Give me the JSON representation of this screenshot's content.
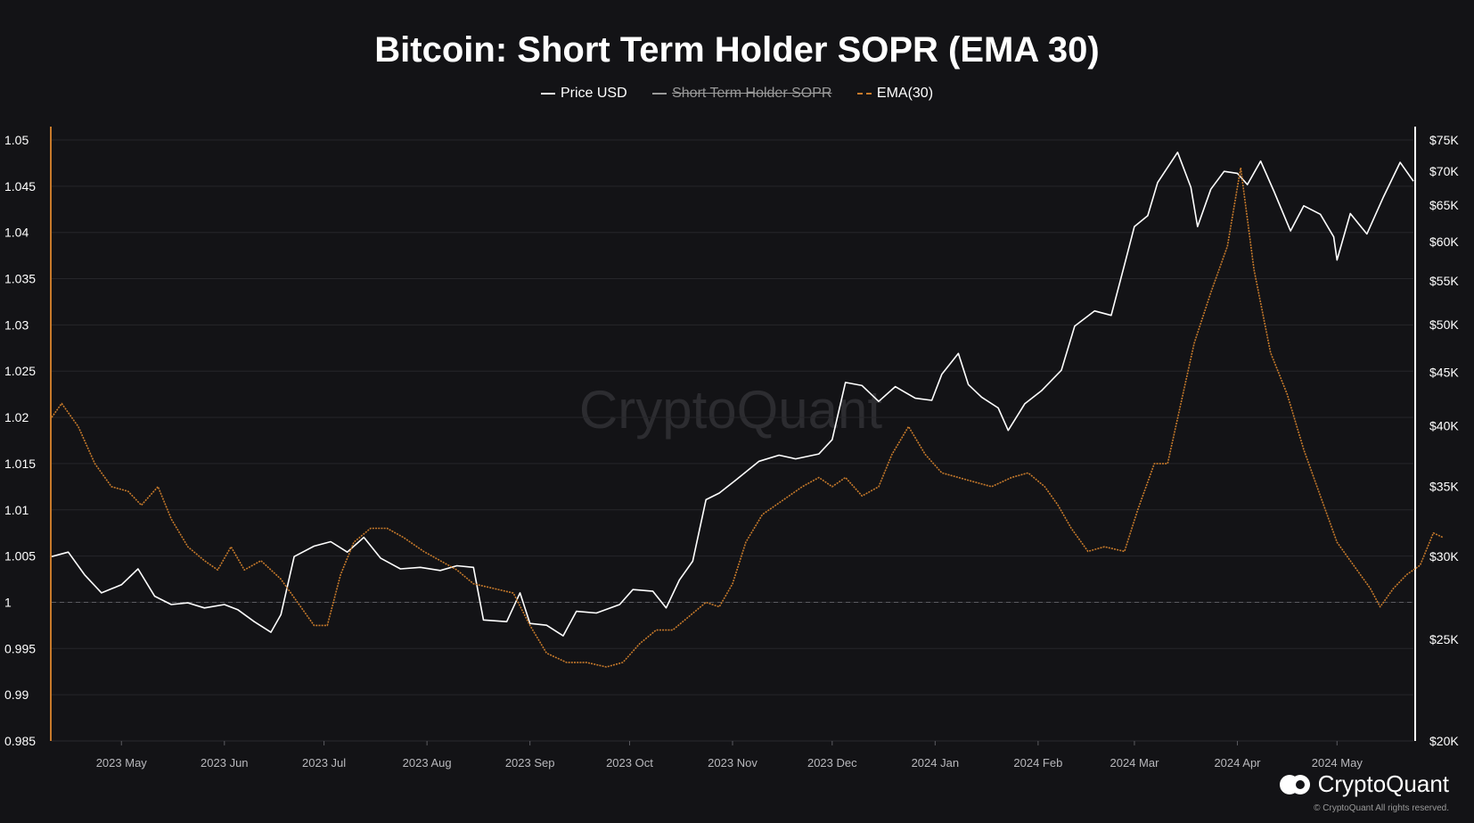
{
  "chart_data": {
    "type": "line",
    "title": "Bitcoin: Short Term Holder SOPR (EMA 30)",
    "legend": [
      {
        "label": "Price USD",
        "color": "#ffffff",
        "hidden": false
      },
      {
        "label": "Short Term Holder SOPR",
        "color": "#9a9a9a",
        "hidden": true
      },
      {
        "label": "EMA(30)",
        "color": "#c77a2b",
        "hidden": false
      }
    ],
    "x_axis": {
      "ticks": [
        "2023 May",
        "2023 Jun",
        "2023 Jul",
        "2023 Aug",
        "2023 Sep",
        "2023 Oct",
        "2023 Nov",
        "2023 Dec",
        "2024 Jan",
        "2024 Feb",
        "2024 Mar",
        "2024 Apr",
        "2024 May"
      ],
      "range": [
        "2023-04-10",
        "2024-05-24"
      ]
    },
    "y_left": {
      "ticks": [
        "1.05",
        "1.045",
        "1.04",
        "1.035",
        "1.03",
        "1.025",
        "1.02",
        "1.015",
        "1.01",
        "1.005",
        "1",
        "0.995",
        "0.99",
        "0.985"
      ],
      "range": [
        0.985,
        1.05
      ],
      "reference_line": 1.0,
      "axis_color": "#c77a2b"
    },
    "y_right": {
      "ticks": [
        "$75K",
        "$70K",
        "$65K",
        "$60K",
        "$55K",
        "$50K",
        "$45K",
        "$40K",
        "$35K",
        "$30K",
        "$25K",
        "$20K"
      ],
      "range": [
        20000,
        75000
      ],
      "scale": "log",
      "axis_color": "#ffffff"
    },
    "series": [
      {
        "name": "Price USD",
        "axis": "right",
        "color": "#ffffff",
        "points": [
          [
            "2023-04-10",
            30000
          ],
          [
            "2023-04-15",
            30300
          ],
          [
            "2023-04-20",
            28800
          ],
          [
            "2023-04-25",
            27700
          ],
          [
            "2023-05-01",
            28200
          ],
          [
            "2023-05-06",
            29200
          ],
          [
            "2023-05-11",
            27500
          ],
          [
            "2023-05-16",
            27000
          ],
          [
            "2023-05-21",
            27100
          ],
          [
            "2023-05-26",
            26800
          ],
          [
            "2023-06-01",
            27000
          ],
          [
            "2023-06-05",
            26700
          ],
          [
            "2023-06-10",
            26000
          ],
          [
            "2023-06-15",
            25400
          ],
          [
            "2023-06-18",
            26400
          ],
          [
            "2023-06-22",
            30000
          ],
          [
            "2023-06-28",
            30700
          ],
          [
            "2023-07-03",
            31000
          ],
          [
            "2023-07-08",
            30300
          ],
          [
            "2023-07-13",
            31300
          ],
          [
            "2023-07-18",
            29900
          ],
          [
            "2023-07-24",
            29200
          ],
          [
            "2023-07-30",
            29300
          ],
          [
            "2023-08-05",
            29100
          ],
          [
            "2023-08-10",
            29400
          ],
          [
            "2023-08-15",
            29300
          ],
          [
            "2023-08-18",
            26100
          ],
          [
            "2023-08-25",
            26000
          ],
          [
            "2023-08-29",
            27700
          ],
          [
            "2023-09-01",
            25900
          ],
          [
            "2023-09-06",
            25800
          ],
          [
            "2023-09-11",
            25200
          ],
          [
            "2023-09-15",
            26600
          ],
          [
            "2023-09-21",
            26500
          ],
          [
            "2023-09-28",
            27000
          ],
          [
            "2023-10-02",
            27900
          ],
          [
            "2023-10-08",
            27800
          ],
          [
            "2023-10-12",
            26800
          ],
          [
            "2023-10-16",
            28500
          ],
          [
            "2023-10-20",
            29700
          ],
          [
            "2023-10-24",
            34000
          ],
          [
            "2023-10-28",
            34500
          ],
          [
            "2023-11-02",
            35500
          ],
          [
            "2023-11-09",
            37000
          ],
          [
            "2023-11-15",
            37500
          ],
          [
            "2023-11-20",
            37200
          ],
          [
            "2023-11-27",
            37600
          ],
          [
            "2023-12-01",
            38800
          ],
          [
            "2023-12-05",
            44000
          ],
          [
            "2023-12-10",
            43700
          ],
          [
            "2023-12-15",
            42200
          ],
          [
            "2023-12-20",
            43600
          ],
          [
            "2023-12-26",
            42500
          ],
          [
            "2023-12-31",
            42300
          ],
          [
            "2024-01-03",
            44800
          ],
          [
            "2024-01-08",
            46900
          ],
          [
            "2024-01-11",
            43800
          ],
          [
            "2024-01-15",
            42600
          ],
          [
            "2024-01-20",
            41600
          ],
          [
            "2024-01-23",
            39600
          ],
          [
            "2024-01-28",
            42000
          ],
          [
            "2024-02-02",
            43200
          ],
          [
            "2024-02-08",
            45200
          ],
          [
            "2024-02-12",
            49800
          ],
          [
            "2024-02-18",
            51500
          ],
          [
            "2024-02-23",
            51000
          ],
          [
            "2024-02-27",
            57000
          ],
          [
            "2024-03-01",
            62000
          ],
          [
            "2024-03-05",
            63500
          ],
          [
            "2024-03-08",
            68300
          ],
          [
            "2024-03-14",
            73000
          ],
          [
            "2024-03-18",
            67600
          ],
          [
            "2024-03-20",
            62000
          ],
          [
            "2024-03-24",
            67300
          ],
          [
            "2024-03-28",
            70000
          ],
          [
            "2024-04-01",
            69700
          ],
          [
            "2024-04-04",
            68000
          ],
          [
            "2024-04-08",
            71600
          ],
          [
            "2024-04-12",
            67000
          ],
          [
            "2024-04-17",
            61400
          ],
          [
            "2024-04-21",
            64900
          ],
          [
            "2024-04-26",
            63700
          ],
          [
            "2024-04-30",
            60600
          ],
          [
            "2024-05-01",
            57600
          ],
          [
            "2024-05-05",
            63800
          ],
          [
            "2024-05-10",
            61000
          ],
          [
            "2024-05-15",
            66200
          ],
          [
            "2024-05-20",
            71400
          ],
          [
            "2024-05-24",
            68500
          ]
        ]
      },
      {
        "name": "EMA(30)",
        "axis": "left",
        "color": "#c77a2b",
        "dashed": true,
        "points": [
          [
            "2023-04-10",
            1.02
          ],
          [
            "2023-04-13",
            1.0215
          ],
          [
            "2023-04-18",
            1.019
          ],
          [
            "2023-04-23",
            1.015
          ],
          [
            "2023-04-28",
            1.0125
          ],
          [
            "2023-05-03",
            1.012
          ],
          [
            "2023-05-07",
            1.0105
          ],
          [
            "2023-05-12",
            1.0125
          ],
          [
            "2023-05-16",
            1.009
          ],
          [
            "2023-05-21",
            1.006
          ],
          [
            "2023-05-26",
            1.0045
          ],
          [
            "2023-05-30",
            1.0035
          ],
          [
            "2023-06-03",
            1.006
          ],
          [
            "2023-06-07",
            1.0035
          ],
          [
            "2023-06-12",
            1.0045
          ],
          [
            "2023-06-18",
            1.0025
          ],
          [
            "2023-06-24",
            0.9995
          ],
          [
            "2023-06-28",
            0.9975
          ],
          [
            "2023-07-02",
            0.9975
          ],
          [
            "2023-07-06",
            1.003
          ],
          [
            "2023-07-10",
            1.0065
          ],
          [
            "2023-07-15",
            1.008
          ],
          [
            "2023-07-20",
            1.008
          ],
          [
            "2023-07-25",
            1.007
          ],
          [
            "2023-07-31",
            1.0055
          ],
          [
            "2023-08-05",
            1.0045
          ],
          [
            "2023-08-10",
            1.0035
          ],
          [
            "2023-08-15",
            1.002
          ],
          [
            "2023-08-21",
            1.0015
          ],
          [
            "2023-08-27",
            1.001
          ],
          [
            "2023-09-01",
            0.9975
          ],
          [
            "2023-09-06",
            0.9945
          ],
          [
            "2023-09-12",
            0.9935
          ],
          [
            "2023-09-18",
            0.9935
          ],
          [
            "2023-09-24",
            0.993
          ],
          [
            "2023-09-29",
            0.9935
          ],
          [
            "2023-10-04",
            0.9955
          ],
          [
            "2023-10-09",
            0.997
          ],
          [
            "2023-10-14",
            0.997
          ],
          [
            "2023-10-19",
            0.9985
          ],
          [
            "2023-10-24",
            1.0
          ],
          [
            "2023-10-28",
            0.9995
          ],
          [
            "2023-11-01",
            1.002
          ],
          [
            "2023-11-05",
            1.0065
          ],
          [
            "2023-11-10",
            1.0095
          ],
          [
            "2023-11-16",
            1.011
          ],
          [
            "2023-11-22",
            1.0125
          ],
          [
            "2023-11-27",
            1.0135
          ],
          [
            "2023-12-01",
            1.0125
          ],
          [
            "2023-12-05",
            1.0135
          ],
          [
            "2023-12-10",
            1.0115
          ],
          [
            "2023-12-15",
            1.0125
          ],
          [
            "2023-12-19",
            1.016
          ],
          [
            "2023-12-24",
            1.019
          ],
          [
            "2023-12-29",
            1.016
          ],
          [
            "2024-01-03",
            1.014
          ],
          [
            "2024-01-08",
            1.0135
          ],
          [
            "2024-01-13",
            1.013
          ],
          [
            "2024-01-18",
            1.0125
          ],
          [
            "2024-01-24",
            1.0135
          ],
          [
            "2024-01-29",
            1.014
          ],
          [
            "2024-02-03",
            1.0125
          ],
          [
            "2024-02-07",
            1.0105
          ],
          [
            "2024-02-11",
            1.008
          ],
          [
            "2024-02-16",
            1.0055
          ],
          [
            "2024-02-21",
            1.006
          ],
          [
            "2024-02-27",
            1.0055
          ],
          [
            "2024-03-02",
            1.01
          ],
          [
            "2024-03-07",
            1.015
          ],
          [
            "2024-03-11",
            1.015
          ],
          [
            "2024-03-15",
            1.0215
          ],
          [
            "2024-03-19",
            1.028
          ],
          [
            "2024-03-24",
            1.0335
          ],
          [
            "2024-03-29",
            1.0385
          ],
          [
            "2024-04-02",
            1.047
          ],
          [
            "2024-04-06",
            1.036
          ],
          [
            "2024-04-11",
            1.027
          ],
          [
            "2024-04-16",
            1.0225
          ],
          [
            "2024-04-21",
            1.0165
          ],
          [
            "2024-04-26",
            1.0115
          ],
          [
            "2024-05-01",
            1.0065
          ],
          [
            "2024-05-06",
            1.004
          ],
          [
            "2024-05-11",
            1.0015
          ],
          [
            "2024-05-14",
            0.9995
          ],
          [
            "2024-05-18",
            1.0015
          ],
          [
            "2024-05-22",
            1.003
          ],
          [
            "2024-05-26",
            1.004
          ],
          [
            "2024-05-30",
            1.0075
          ],
          [
            "2024-06-02",
            1.007
          ]
        ]
      }
    ],
    "watermark": "CryptoQuant"
  },
  "branding": {
    "logo_text": "CryptoQuant",
    "copyright": "© CryptoQuant All rights reserved."
  }
}
